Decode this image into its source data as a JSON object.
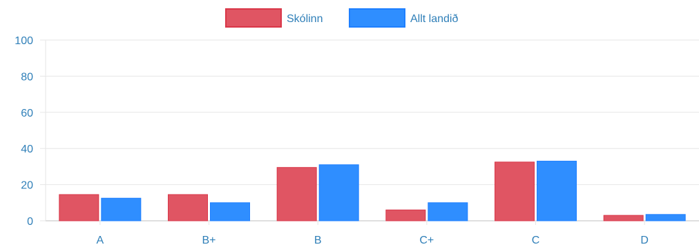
{
  "chart_data": {
    "type": "bar",
    "categories": [
      "A",
      "B+",
      "B",
      "C+",
      "C",
      "D"
    ],
    "series": [
      {
        "name": "Skólinn",
        "color": "#e05563",
        "border_color": "#d93648",
        "values": [
          14.5,
          14.5,
          29.5,
          6,
          32.5,
          3
        ]
      },
      {
        "name": "Allt landið",
        "color": "#2f8eff",
        "border_color": "#1e7fff",
        "values": [
          12.5,
          10,
          31,
          10,
          33,
          3.5
        ]
      }
    ],
    "ylim": [
      0,
      100
    ],
    "yticks": [
      0,
      20,
      40,
      60,
      80,
      100
    ],
    "grid": true,
    "legend_position": "top-center",
    "title": "",
    "xlabel": "",
    "ylabel": ""
  }
}
